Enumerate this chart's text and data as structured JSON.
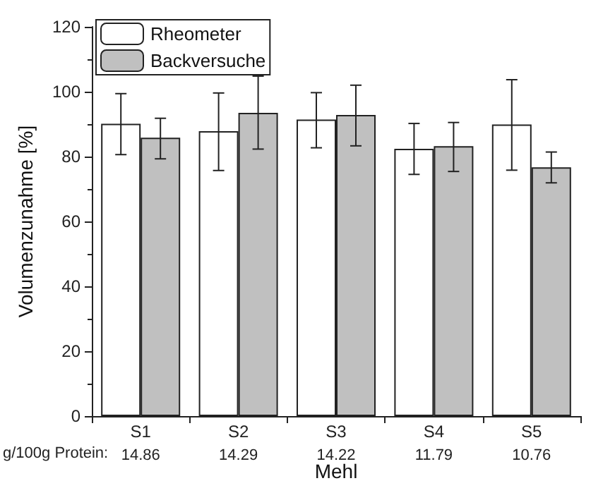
{
  "chart_data": {
    "type": "bar",
    "categories": [
      "S1",
      "S2",
      "S3",
      "S4",
      "S5"
    ],
    "xlabel": "Mehl",
    "ylabel": "Volumenzunahme [%]",
    "series": [
      {
        "name": "Rheometer",
        "color": "#ffffff",
        "values": [
          90.1,
          87.8,
          91.4,
          82.4,
          89.9
        ],
        "errors": [
          [
            80.6,
            99.4
          ],
          [
            75.7,
            99.6
          ],
          [
            82.7,
            99.7
          ],
          [
            74.5,
            90.2
          ],
          [
            75.8,
            103.7
          ]
        ]
      },
      {
        "name": "Backversuche",
        "color": "#c0c0c0",
        "values": [
          85.8,
          93.5,
          92.8,
          83.2,
          76.7
        ],
        "errors": [
          [
            79.3,
            91.8
          ],
          [
            82.3,
            104.8
          ],
          [
            83.3,
            102.0
          ],
          [
            75.4,
            90.5
          ],
          [
            71.9,
            81.4
          ]
        ]
      }
    ],
    "ylim": [
      0,
      120
    ],
    "yticks": [
      0,
      20,
      40,
      60,
      80,
      100,
      120
    ],
    "grid": false,
    "legend": "top left",
    "annotations": [
      "g/100g Protein:",
      "14.86",
      "14.29",
      "14.22",
      "11.79",
      "10.76"
    ]
  }
}
